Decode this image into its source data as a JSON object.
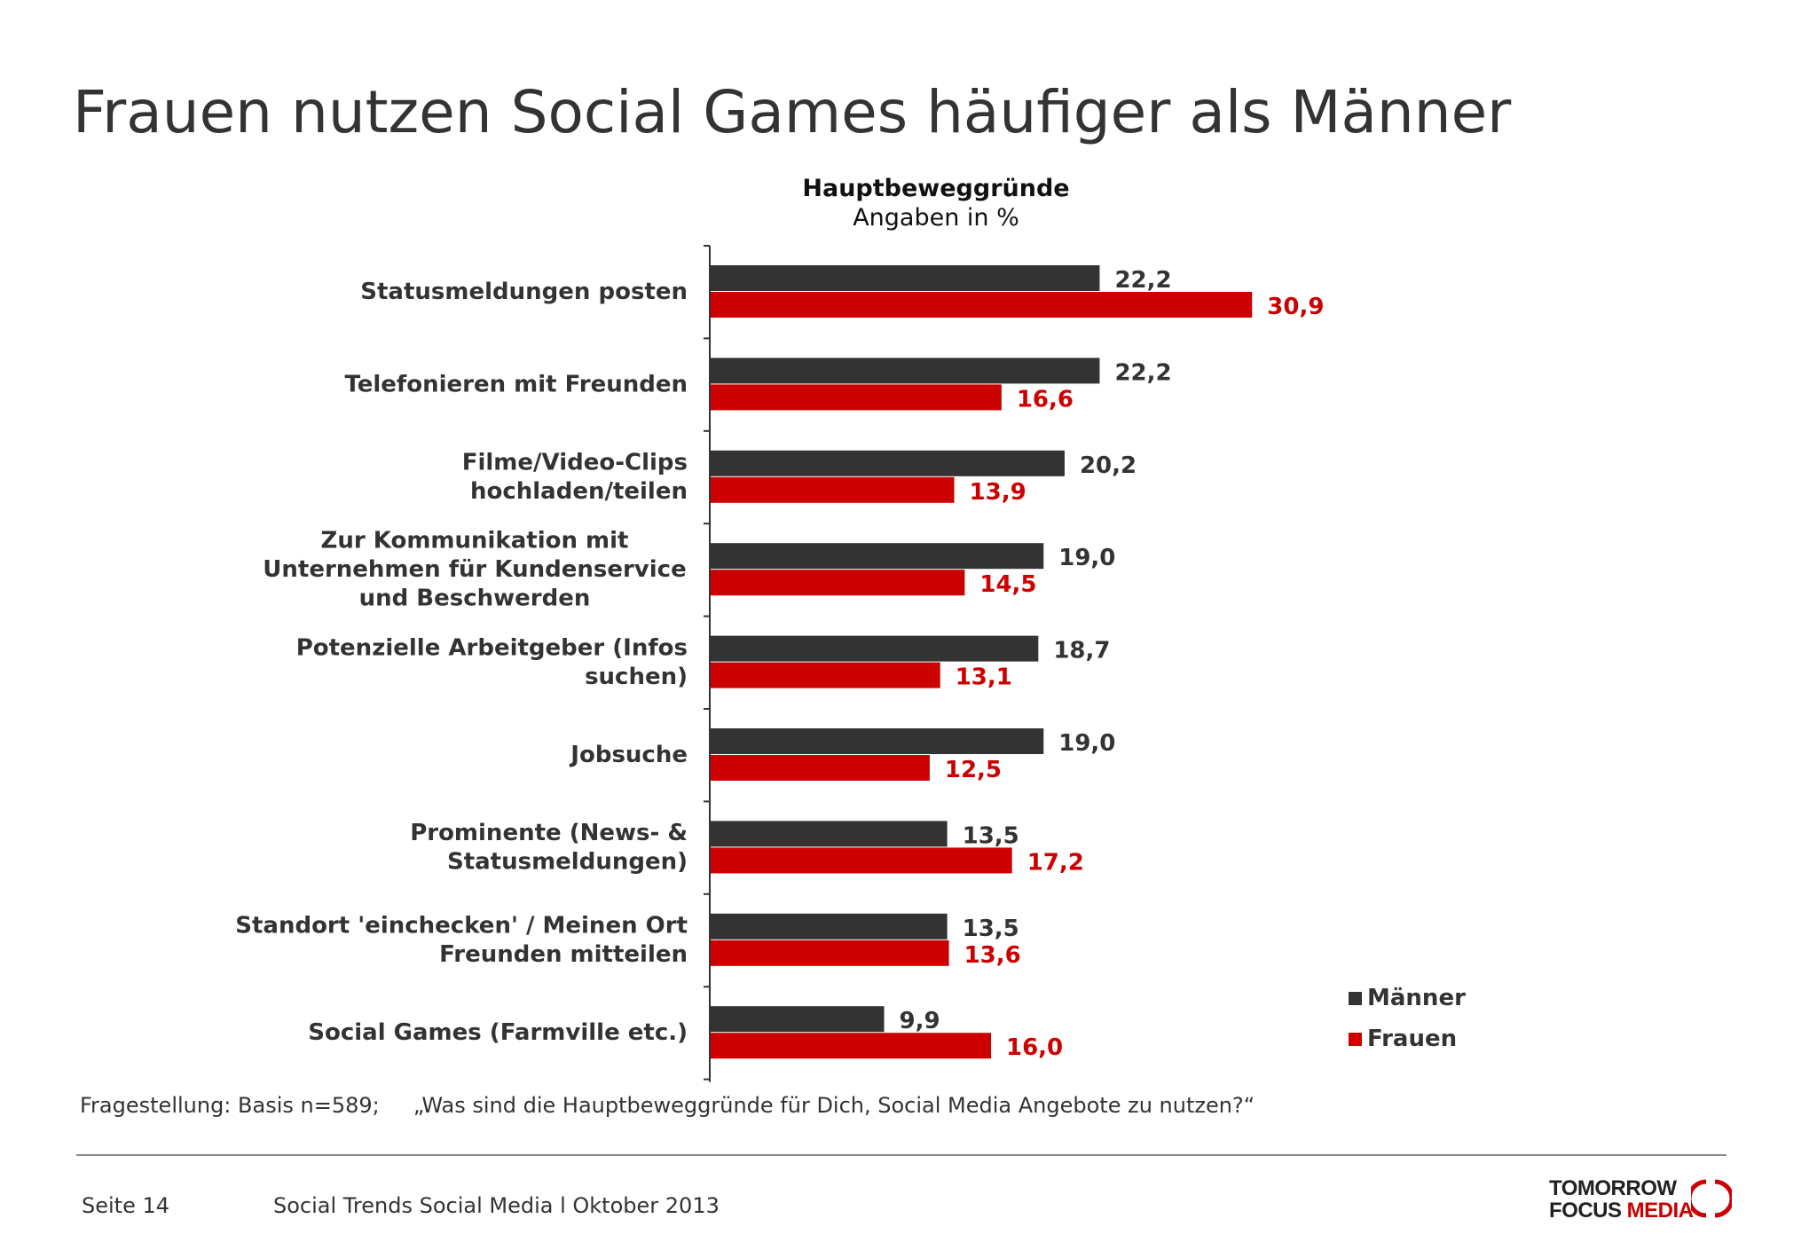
{
  "title": "Frauen nutzen Social Games häufiger als Männer",
  "subtitle_bold": "Hauptbeweggründe",
  "subtitle": "Angaben in %",
  "colors": {
    "maenner": "#333333",
    "frauen": "#cc0000"
  },
  "chart_data": {
    "type": "bar",
    "orientation": "horizontal",
    "categories": [
      [
        "Statusmeldungen posten"
      ],
      [
        "Telefonieren mit Freunden"
      ],
      [
        "Filme/Video-Clips",
        "hochladen/teilen"
      ],
      [
        "Zur Kommunikation mit",
        "Unternehmen für Kundenservice",
        "und Beschwerden"
      ],
      [
        "Potenzielle Arbeitgeber (Infos",
        "suchen)"
      ],
      [
        "Jobsuche"
      ],
      [
        "Prominente (News- &",
        "Statusmeldungen)"
      ],
      [
        "Standort 'einchecken' / Meinen Ort",
        "Freunden mitteilen"
      ],
      [
        "Social Games (Farmville etc.)"
      ]
    ],
    "series": [
      {
        "name": "Männer",
        "values": [
          22.2,
          22.2,
          20.2,
          19.0,
          18.7,
          19.0,
          13.5,
          13.5,
          9.9
        ],
        "labels": [
          "22,2",
          "22,2",
          "20,2",
          "19,0",
          "18,7",
          "19,0",
          "13,5",
          "13,5",
          "9,9"
        ]
      },
      {
        "name": "Frauen",
        "values": [
          30.9,
          16.6,
          13.9,
          14.5,
          13.1,
          12.5,
          17.2,
          13.6,
          16.0
        ],
        "labels": [
          "30,9",
          "16,6",
          "13,9",
          "14,5",
          "13,1",
          "12,5",
          "17,2",
          "13,6",
          "16,0"
        ]
      }
    ],
    "xlim": [
      0,
      40
    ],
    "legend": "bottom-right",
    "grid": false
  },
  "footer": {
    "question": "Fragestellung: Basis n=589;     „Was sind die Hauptbeweggründe für Dich, Social Media Angebote zu nutzen?“",
    "page": "Seite 14",
    "source": "Social Trends Social Media l Oktober 2013"
  },
  "logo": {
    "line1": "TOMORROW",
    "line2a": "FOCUS",
    "line2b": "MEDIA"
  }
}
